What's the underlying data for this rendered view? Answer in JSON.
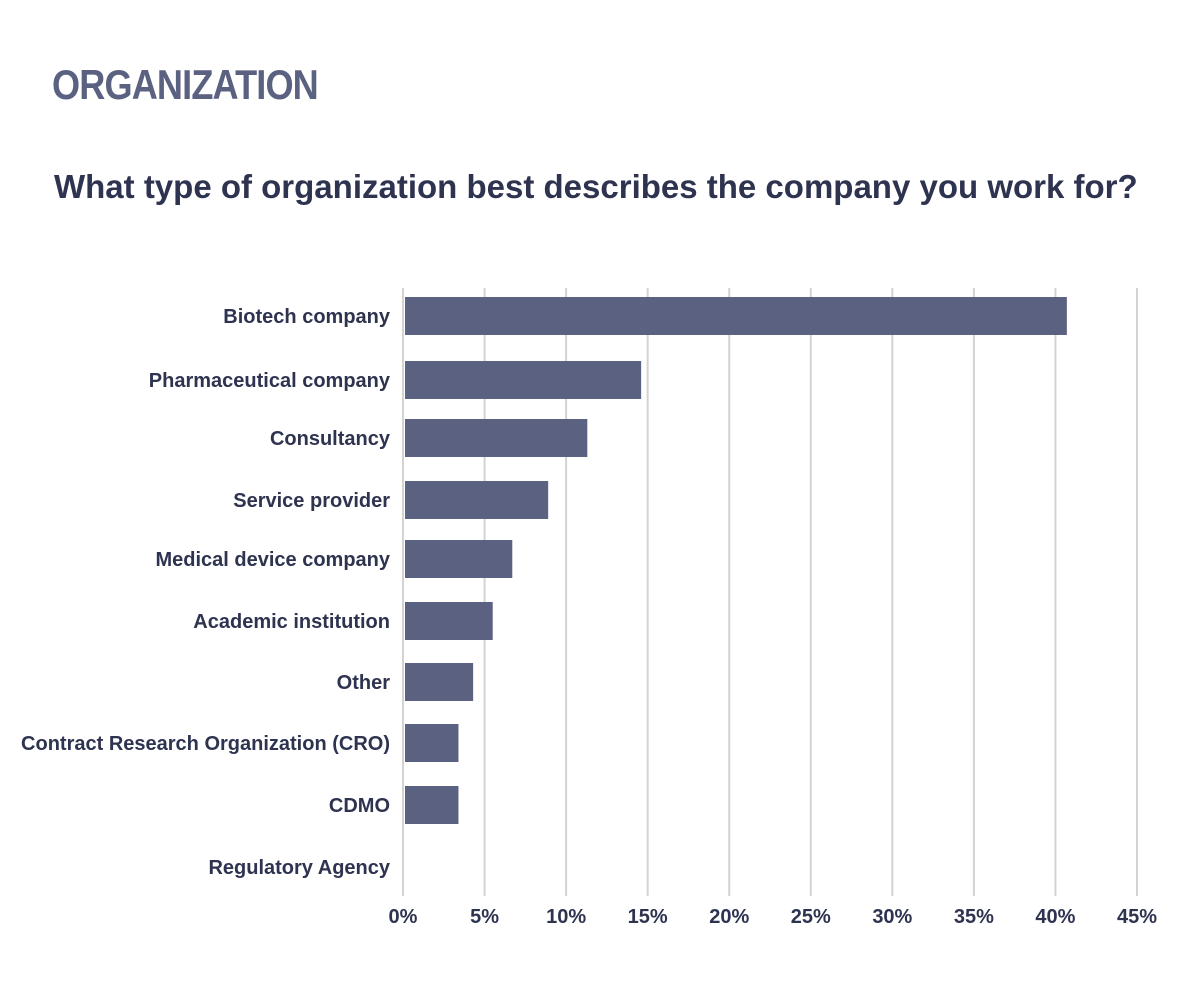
{
  "header": {
    "section_title": "ORGANIZATION",
    "question": "What type of organization best describes the company you work for?"
  },
  "colors": {
    "bar": "#5b6180",
    "grid": "#d3d3d3",
    "text": "#2e3350"
  },
  "chart_data": {
    "type": "bar",
    "orientation": "horizontal",
    "categories": [
      "Biotech company",
      "Pharmaceutical company",
      "Consultancy",
      "Service provider",
      "Medical device company",
      "Academic institution",
      "Other",
      "Contract Research Organization (CRO)",
      "CDMO",
      "Regulatory Agency"
    ],
    "values": [
      40.7,
      14.6,
      11.3,
      8.9,
      6.7,
      5.5,
      4.3,
      3.4,
      3.4,
      0
    ],
    "xlim": [
      0,
      45
    ],
    "xticks": [
      0,
      5,
      10,
      15,
      20,
      25,
      30,
      35,
      40,
      45
    ],
    "xtick_labels": [
      "0%",
      "5%",
      "10%",
      "15%",
      "20%",
      "25%",
      "30%",
      "35%",
      "40%",
      "45%"
    ],
    "grid": true,
    "legend": "none"
  }
}
